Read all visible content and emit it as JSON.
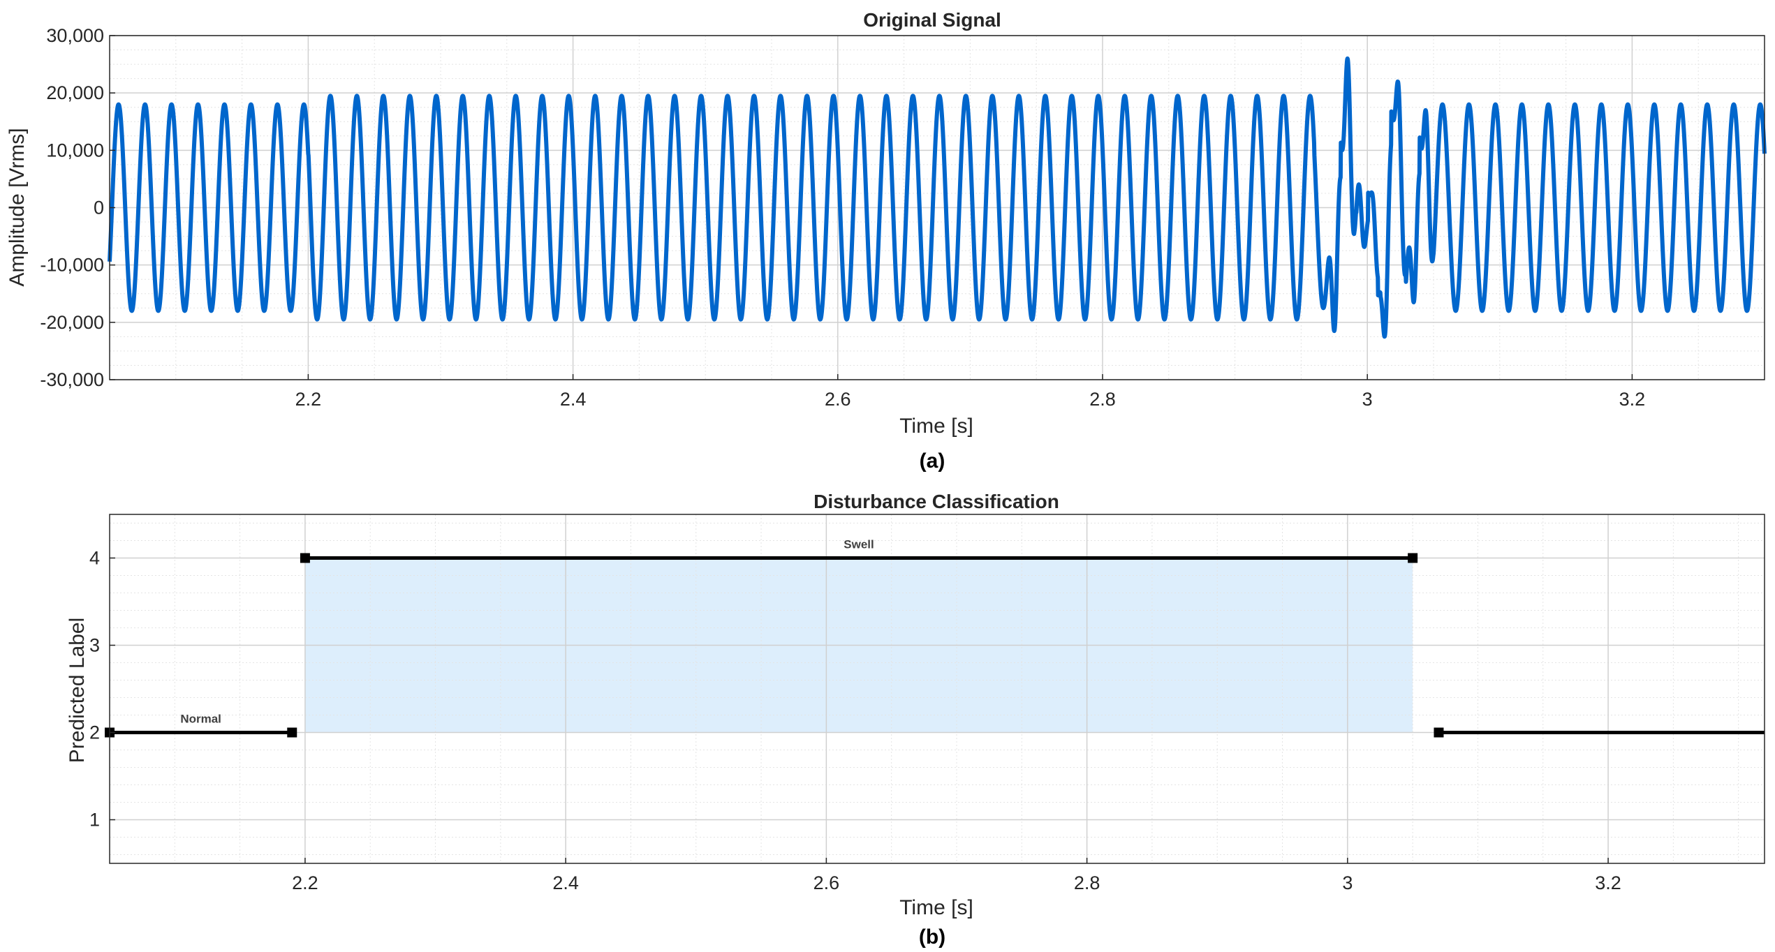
{
  "chart_data": [
    {
      "type": "line",
      "title": "Original Signal",
      "xlabel": "Time [s]",
      "ylabel": "Amplitude [Vrms]",
      "panel_label": "(a)",
      "xlim": [
        2.05,
        3.3
      ],
      "ylim": [
        -30000,
        30000
      ],
      "xticks": [
        "2.2",
        "2.4",
        "2.6",
        "2.8",
        "3",
        "3.2"
      ],
      "xtick_values": [
        2.2,
        2.4,
        2.6,
        2.8,
        3.0,
        3.2
      ],
      "yticks": [
        "30,000",
        "20,000",
        "10,000",
        "0",
        "-10,000",
        "-20,000",
        "-30,000"
      ],
      "ytick_values": [
        30000,
        20000,
        10000,
        0,
        -10000,
        -20000,
        -30000
      ],
      "grid": true,
      "minor_grid": true,
      "color": "#0066CC",
      "signal": {
        "frequency_hz": 50,
        "normal_amplitude": 18000,
        "swell_amplitude": 19500,
        "swell_start": 2.2,
        "post_swell_amplitude": 17500,
        "post_event_amplitude": 18000,
        "transient_time": 3.0,
        "transient_peaks": [
          {
            "t": 2.985,
            "y": 26000
          },
          {
            "t": 2.975,
            "y": -21500
          },
          {
            "t": 3.003,
            "y": 4000
          },
          {
            "t": 2.998,
            "y": -14000
          },
          {
            "t": 3.013,
            "y": -22500
          },
          {
            "t": 3.023,
            "y": 22000
          },
          {
            "t": 3.035,
            "y": -16500
          },
          {
            "t": 3.044,
            "y": 17000
          }
        ]
      }
    },
    {
      "type": "line",
      "title": "Disturbance Classification",
      "xlabel": "Time [s]",
      "ylabel": "Predicted Label",
      "panel_label": "(b)",
      "xlim": [
        2.05,
        3.32
      ],
      "ylim": [
        0.5,
        4.5
      ],
      "xticks": [
        "2.2",
        "2.4",
        "2.6",
        "2.8",
        "3",
        "3.2"
      ],
      "xtick_values": [
        2.2,
        2.4,
        2.6,
        2.8,
        3.0,
        3.2
      ],
      "yticks": [
        "4",
        "3",
        "2",
        "1"
      ],
      "ytick_values": [
        4,
        3,
        2,
        1
      ],
      "grid": true,
      "minor_grid": true,
      "segments": [
        {
          "x": [
            2.05,
            2.19
          ],
          "y": 2,
          "label": "Normal"
        },
        {
          "x": [
            2.2,
            3.05
          ],
          "y": 4,
          "label": "Swell"
        },
        {
          "x": [
            3.07,
            3.32
          ],
          "y": 2,
          "label": ""
        }
      ],
      "highlight": {
        "x": [
          2.2,
          3.05
        ],
        "y": [
          2,
          4
        ],
        "color": "#DDEEFC"
      },
      "line_color": "#000000"
    }
  ]
}
